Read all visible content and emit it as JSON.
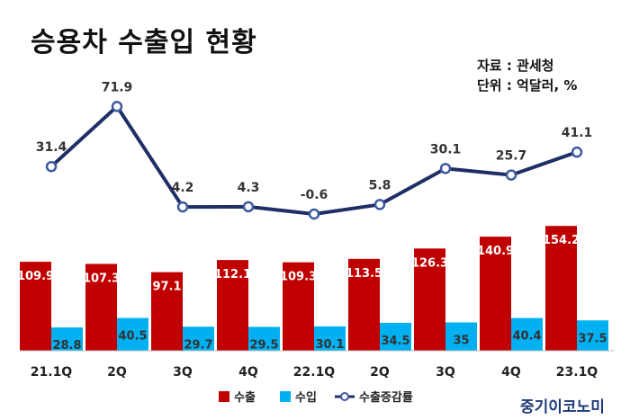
{
  "header": {
    "title": "승용차 수출입 현황",
    "source": "자료 : 관세청",
    "unit": "단위 : 억달러, %"
  },
  "brand": "중기이코노미",
  "colors": {
    "export": "#c00000",
    "import": "#00b0f0",
    "rate": "#1f2f66",
    "marker_fill": "#ffffff",
    "marker_stroke": "#3d5a9e"
  },
  "chart_data": {
    "type": "bar",
    "categories": [
      "21.1Q",
      "2Q",
      "3Q",
      "4Q",
      "22.1Q",
      "2Q",
      "3Q",
      "4Q",
      "23.1Q"
    ],
    "series": [
      {
        "name": "수출",
        "kind": "bar",
        "values": [
          109.9,
          107.3,
          97.1,
          112.1,
          109.3,
          113.5,
          126.3,
          140.9,
          154.2
        ]
      },
      {
        "name": "수입",
        "kind": "bar",
        "values": [
          28.8,
          40.5,
          29.7,
          29.5,
          30.1,
          34.5,
          35,
          40.4,
          37.5
        ]
      },
      {
        "name": "수출증감률",
        "kind": "line",
        "values": [
          31.4,
          71.9,
          4.2,
          4.3,
          -0.6,
          5.8,
          30.1,
          25.7,
          41.1
        ]
      }
    ],
    "value_labels": {
      "export": [
        "109.9",
        "107.3",
        "97.1",
        "112.1",
        "109.3",
        "113.5",
        "126.3",
        "140.9",
        "154.2"
      ],
      "import": [
        "28.8",
        "40.5",
        "29.7",
        "29.5",
        "30.1",
        "34.5",
        "35",
        "40.4",
        "37.5"
      ],
      "rate": [
        "31.4",
        "71.9",
        "4.2",
        "4.3",
        "-0.6",
        "5.8",
        "30.1",
        "25.7",
        "41.1"
      ]
    },
    "legend": [
      "수출",
      "수입",
      "수출증감률"
    ],
    "legend_position": "bottom",
    "grid": false
  }
}
